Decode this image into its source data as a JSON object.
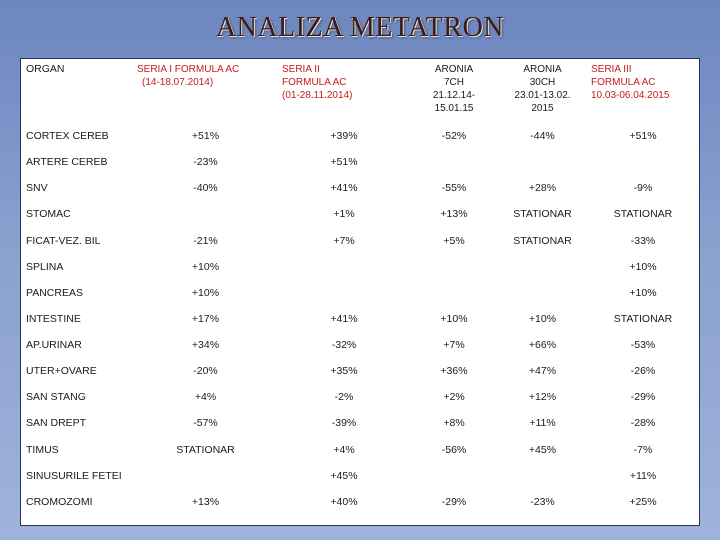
{
  "title": "ANALIZA METATRON",
  "header": {
    "organ": "ORGAN",
    "col1": [
      "SERIA  I FORMULA  AC",
      "(14-18.07.2014)"
    ],
    "col2": [
      "SERIA II",
      "FORMULA AC",
      "(01-28.11.2014)"
    ],
    "col3": [
      "ARONIA",
      "7CH",
      "21.12.14-",
      "15.01.15"
    ],
    "col4": [
      "ARONIA",
      "30CH",
      "23.01-13.02.",
      "2015"
    ],
    "col5": [
      "SERIA III",
      "FORMULA AC",
      "10.03-06.04.2015"
    ]
  },
  "rows": [
    {
      "organ": "CORTEX CEREB",
      "values": [
        "+51%",
        "+39%",
        "-52%",
        "-44%",
        "+51%"
      ]
    },
    {
      "organ": "ARTERE CEREB",
      "values": [
        "-23%",
        "+51%",
        "",
        "",
        ""
      ]
    },
    {
      "organ": "SNV",
      "values": [
        "-40%",
        "+41%",
        "-55%",
        "+28%",
        "-9%"
      ]
    },
    {
      "organ": "STOMAC",
      "values": [
        "",
        "+1%",
        "+13%",
        "STATIONAR",
        "STATIONAR"
      ]
    },
    {
      "organ": "FICAT-VEZ. BIL",
      "values": [
        "-21%",
        "+7%",
        "+5%",
        "STATIONAR",
        "-33%"
      ]
    },
    {
      "organ": "SPLINA",
      "values": [
        "+10%",
        "",
        "",
        "",
        "+10%"
      ]
    },
    {
      "organ": "PANCREAS",
      "values": [
        "+10%",
        "",
        "",
        "",
        "+10%"
      ]
    },
    {
      "organ": "INTESTINE",
      "values": [
        "+17%",
        "+41%",
        "+10%",
        "+10%",
        "STATIONAR"
      ]
    },
    {
      "organ": "AP.URINAR",
      "values": [
        "+34%",
        "-32%",
        "+7%",
        "+66%",
        "-53%"
      ]
    },
    {
      "organ": "UTER+OVARE",
      "values": [
        "-20%",
        "+35%",
        "+36%",
        "+47%",
        "-26%"
      ]
    },
    {
      "organ": "SAN STANG",
      "values": [
        "+4%",
        "-2%",
        "+2%",
        "+12%",
        "-29%"
      ]
    },
    {
      "organ": "SAN DREPT",
      "values": [
        "-57%",
        "-39%",
        "+8%",
        "+11%",
        "-28%"
      ]
    },
    {
      "organ": "TIMUS",
      "values": [
        "STATIONAR",
        "+4%",
        "-56%",
        "+45%",
        "-7%"
      ]
    },
    {
      "organ": "SINUSURILE FETEI",
      "values": [
        "",
        "+45%",
        "",
        "",
        "+11%"
      ]
    },
    {
      "organ": "CROMOZOMI",
      "values": [
        "+13%",
        "+40%",
        "-29%",
        "-23%",
        "+25%"
      ]
    }
  ]
}
